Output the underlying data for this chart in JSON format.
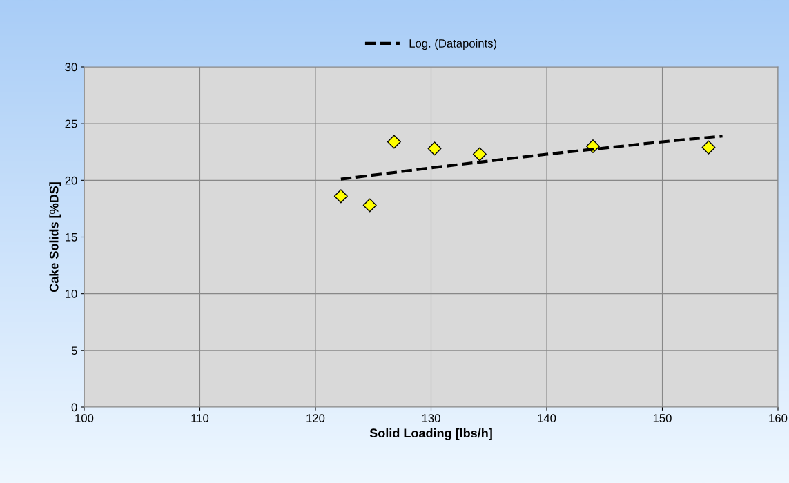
{
  "chart_data": {
    "type": "scatter",
    "xlabel": "Solid Loading [lbs/h]",
    "ylabel": "Cake Solids [%DS]",
    "xlim": [
      100,
      160
    ],
    "xticks": [
      100,
      110,
      120,
      130,
      140,
      150,
      160
    ],
    "ylim": [
      0,
      30
    ],
    "yticks": [
      0,
      5,
      10,
      15,
      20,
      25,
      30
    ],
    "grid": true,
    "legend": "top",
    "marker": "diamond",
    "series": [
      {
        "color": "#ffff00",
        "x": [
          122.2,
          124.7,
          126.8,
          130.3,
          134.2,
          144.0,
          154.0
        ],
        "values": [
          18.6,
          17.8,
          23.4,
          22.8,
          22.3,
          23.0,
          22.9
        ]
      },
      {
        "type": "line",
        "name": "Log. (Datapoints)",
        "color": "#000000",
        "line_style": "dashed",
        "marker": "none",
        "x": [
          122.2,
          130,
          140,
          150,
          155.2
        ],
        "values": [
          20.1,
          21.1,
          22.3,
          23.4,
          23.9
        ]
      }
    ]
  }
}
